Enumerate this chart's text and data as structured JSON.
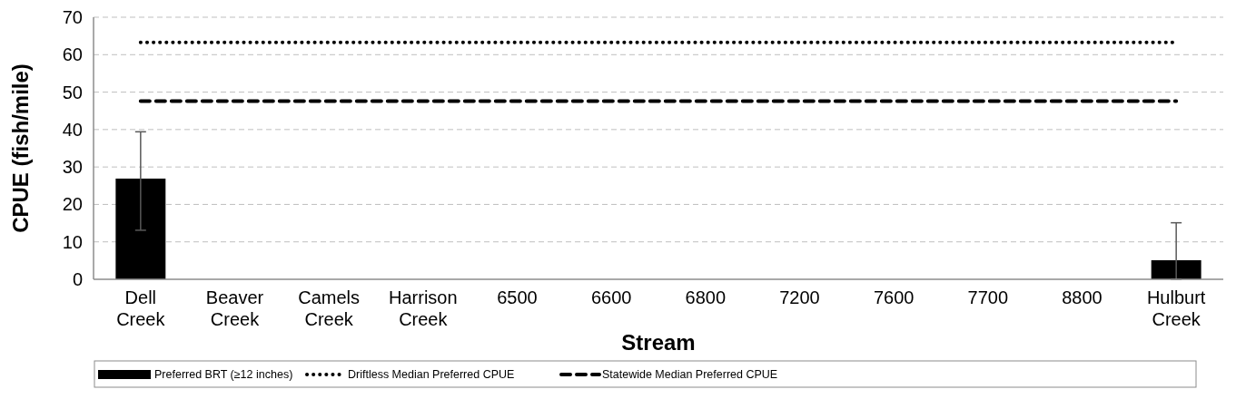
{
  "chart_data": {
    "type": "bar",
    "xlabel": "Stream",
    "ylabel": "CPUE (fish/mile)",
    "categories": [
      "Dell Creek",
      "Beaver Creek",
      "Camels Creek",
      "Harrison Creek",
      "6500",
      "6600",
      "6800",
      "7200",
      "7600",
      "7700",
      "8800",
      "Hulburt Creek"
    ],
    "series": [
      {
        "name": "Preferred BRT (≥12 inches)",
        "color": "#000000",
        "values": [
          26.9,
          null,
          null,
          null,
          null,
          null,
          null,
          null,
          null,
          null,
          null,
          5.1
        ],
        "errors": [
          [
            13.1,
            39.4
          ],
          null,
          null,
          null,
          null,
          null,
          null,
          null,
          null,
          null,
          null,
          [
            0,
            15.1
          ]
        ]
      },
      {
        "name": "Driftless Median Preferred CPUE",
        "type": "line",
        "color": "#000000",
        "line_style": "dotted",
        "values": [
          63.3,
          63.3,
          63.3,
          63.3,
          63.3,
          63.3,
          63.3,
          63.3,
          63.3,
          63.3,
          63.3,
          63.3
        ]
      },
      {
        "name": "Statewide Median Preferred CPUE",
        "type": "line",
        "color": "#000000",
        "line_style": "dashed",
        "values": [
          47.6,
          47.6,
          47.6,
          47.6,
          47.6,
          47.6,
          47.6,
          47.6,
          47.6,
          47.6,
          47.6,
          47.6
        ]
      }
    ],
    "ylim": [
      0,
      70
    ],
    "yticks": [
      0,
      10,
      20,
      30,
      40,
      50,
      60,
      70
    ],
    "grid": "y",
    "legend": "bottom"
  }
}
